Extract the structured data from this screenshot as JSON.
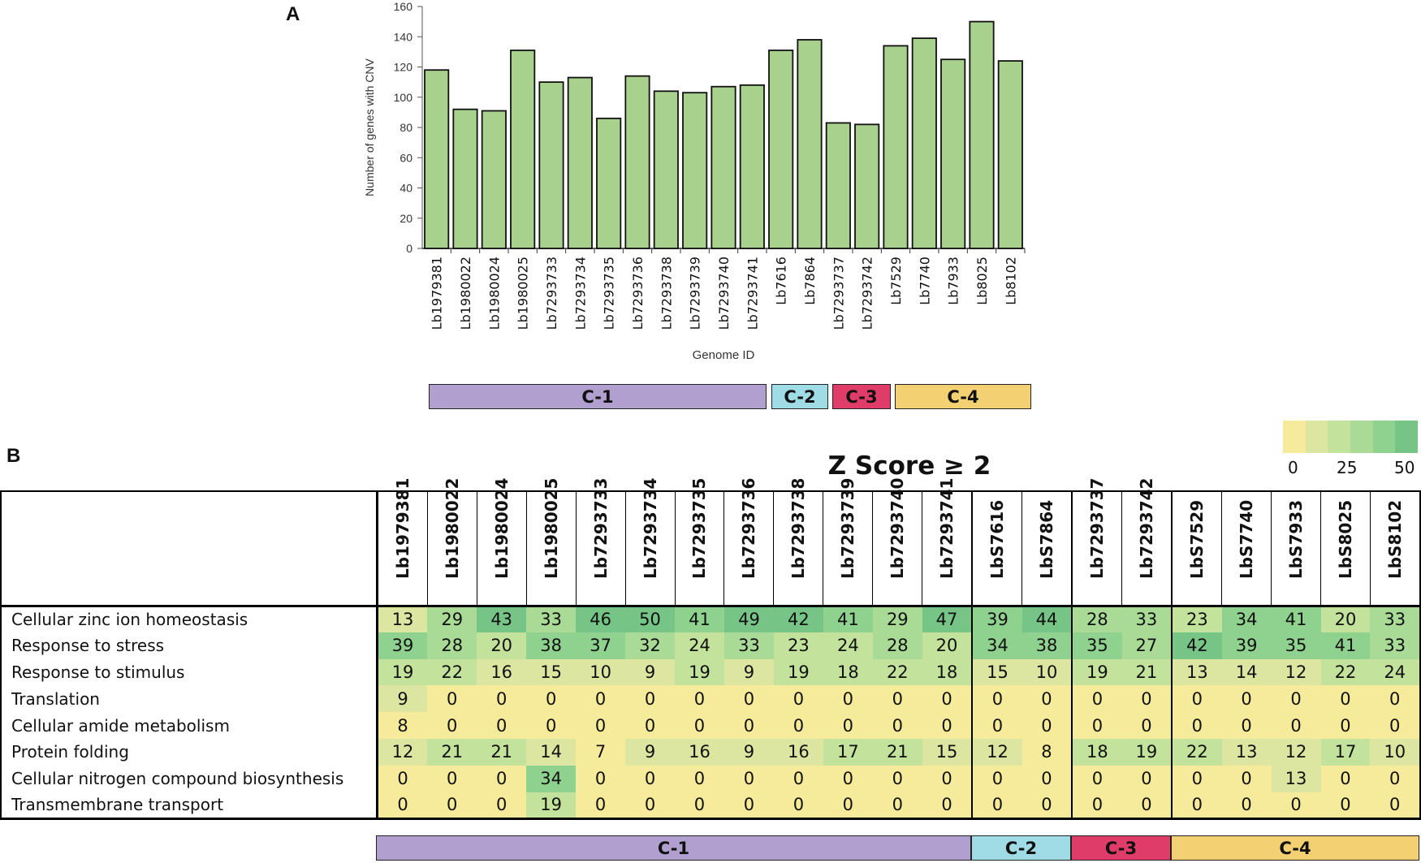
{
  "panel_a": "A",
  "panel_b": "B",
  "chart_data": [
    {
      "type": "bar",
      "title": "",
      "xlabel": "Genome ID",
      "ylabel": "Number of genes with CNV",
      "ylim": [
        0,
        160
      ],
      "yticks": [
        0,
        20,
        40,
        60,
        80,
        100,
        120,
        140,
        160
      ],
      "categories": [
        "Lb1979381",
        "Lb1980022",
        "Lb1980024",
        "Lb1980025",
        "Lb7293733",
        "Lb7293734",
        "Lb7293735",
        "Lb7293736",
        "Lb7293738",
        "Lb7293739",
        "Lb7293740",
        "Lb7293741",
        "Lb7616",
        "Lb7864",
        "Lb7293737",
        "Lb7293742",
        "Lb7529",
        "Lb7740",
        "Lb7933",
        "Lb8025",
        "Lb8102"
      ],
      "values": [
        118,
        92,
        91,
        131,
        110,
        113,
        86,
        114,
        104,
        103,
        107,
        108,
        131,
        138,
        83,
        82,
        134,
        139,
        125,
        150,
        124
      ],
      "bar_color": "#a9d18e",
      "groups": [
        {
          "label": "C-1",
          "start": 0,
          "end": 11,
          "color": "#b19fcf"
        },
        {
          "label": "C-2",
          "start": 12,
          "end": 13,
          "color": "#9fdce6"
        },
        {
          "label": "C-3",
          "start": 14,
          "end": 15,
          "color": "#e03c6a"
        },
        {
          "label": "C-4",
          "start": 16,
          "end": 20,
          "color": "#f3d071"
        }
      ]
    },
    {
      "type": "heatmap",
      "title": "Z Score ≥ 2",
      "columns": [
        "Lb1979381",
        "Lb1980022",
        "Lb1980024",
        "Lb1980025",
        "Lb7293733",
        "Lb7293734",
        "Lb7293735",
        "Lb7293736",
        "Lb7293738",
        "Lb7293739",
        "Lb7293740",
        "Lb7293741",
        "LbS7616",
        "LbS7864",
        "Lb7293737",
        "Lb7293742",
        "LbS7529",
        "LbS7740",
        "LbS7933",
        "LbS8025",
        "LbS8102"
      ],
      "rows": [
        {
          "label": "Cellular zinc ion homeostasis",
          "values": [
            13,
            29,
            43,
            33,
            46,
            50,
            41,
            49,
            42,
            41,
            29,
            47,
            39,
            44,
            28,
            33,
            23,
            34,
            41,
            20,
            33
          ]
        },
        {
          "label": "Response to stress",
          "values": [
            39,
            28,
            20,
            38,
            37,
            32,
            24,
            33,
            23,
            24,
            28,
            20,
            34,
            38,
            35,
            27,
            42,
            39,
            35,
            41,
            33
          ]
        },
        {
          "label": "Response to stimulus",
          "values": [
            19,
            22,
            16,
            15,
            10,
            9,
            19,
            9,
            19,
            18,
            22,
            18,
            15,
            10,
            19,
            21,
            13,
            14,
            12,
            22,
            24
          ]
        },
        {
          "label": "Translation",
          "values": [
            9,
            0,
            0,
            0,
            0,
            0,
            0,
            0,
            0,
            0,
            0,
            0,
            0,
            0,
            0,
            0,
            0,
            0,
            0,
            0,
            0
          ]
        },
        {
          "label": "Cellular amide metabolism",
          "values": [
            8,
            0,
            0,
            0,
            0,
            0,
            0,
            0,
            0,
            0,
            0,
            0,
            0,
            0,
            0,
            0,
            0,
            0,
            0,
            0,
            0
          ]
        },
        {
          "label": "Protein folding",
          "values": [
            12,
            21,
            21,
            14,
            7,
            9,
            16,
            9,
            16,
            17,
            21,
            15,
            12,
            8,
            18,
            19,
            22,
            13,
            12,
            17,
            10
          ]
        },
        {
          "label": "Cellular nitrogen compound biosynthesis",
          "values": [
            0,
            0,
            0,
            34,
            0,
            0,
            0,
            0,
            0,
            0,
            0,
            0,
            0,
            0,
            0,
            0,
            0,
            0,
            13,
            0,
            0
          ]
        },
        {
          "label": "Transmembrane transport",
          "values": [
            0,
            0,
            0,
            19,
            0,
            0,
            0,
            0,
            0,
            0,
            0,
            0,
            0,
            0,
            0,
            0,
            0,
            0,
            0,
            0,
            0
          ]
        }
      ],
      "color_scale": {
        "min": 0,
        "max": 50,
        "ticks": [
          "0",
          "25",
          "50"
        ],
        "colors": [
          "#f6eb9a",
          "#dde6a0",
          "#c3e29b",
          "#a9da96",
          "#8fd18f",
          "#77c487"
        ]
      },
      "groups": [
        {
          "label": "C-1",
          "start": 0,
          "end": 11,
          "color": "#b19fcf"
        },
        {
          "label": "C-2",
          "start": 12,
          "end": 13,
          "color": "#9fdce6"
        },
        {
          "label": "C-3",
          "start": 14,
          "end": 15,
          "color": "#e03c6a"
        },
        {
          "label": "C-4",
          "start": 16,
          "end": 20,
          "color": "#f3d071"
        }
      ]
    }
  ]
}
